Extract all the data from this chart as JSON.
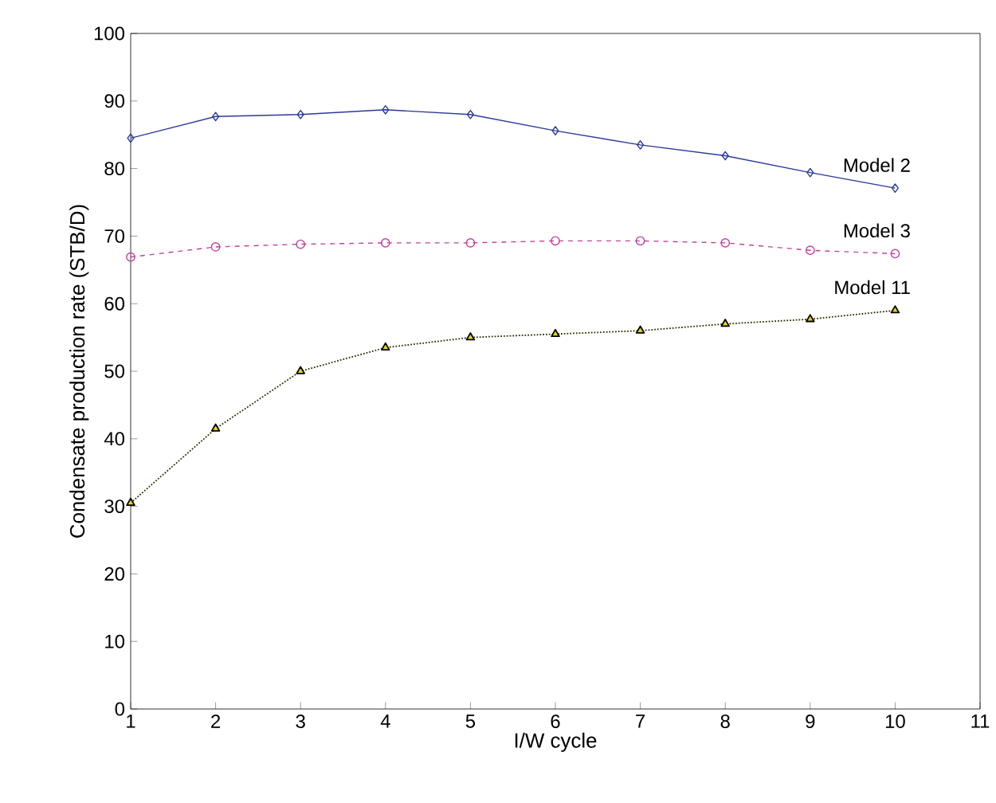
{
  "chart_data": {
    "type": "line",
    "xlabel": "I/W cycle",
    "ylabel": "Condensate production rate (STB/D)",
    "x": [
      1,
      2,
      3,
      4,
      5,
      6,
      7,
      8,
      9,
      10
    ],
    "series": [
      {
        "name": "Model 2",
        "color": "#2b3a9a",
        "marker": "diamond",
        "line_style": "solid",
        "values": [
          84.5,
          87.7,
          88,
          88.7,
          88,
          85.6,
          83.5,
          81.9,
          79.4,
          77.1
        ]
      },
      {
        "name": "Model 3",
        "color": "#c040a0",
        "marker": "circle",
        "line_style": "dashed",
        "values": [
          66.9,
          68.4,
          68.8,
          69,
          69,
          69.3,
          69.3,
          69,
          67.9,
          67.4
        ]
      },
      {
        "name": "Model 11",
        "color": "#e8d800",
        "marker": "triangle",
        "line_style": "dotted",
        "values": [
          30.5,
          41.5,
          50,
          53.5,
          55,
          55.5,
          56,
          57,
          57.7,
          59
        ]
      }
    ],
    "xlim": [
      1,
      11
    ],
    "xticks": [
      1,
      2,
      3,
      4,
      5,
      6,
      7,
      8,
      9,
      10,
      11
    ],
    "ylim": [
      0,
      100
    ],
    "yticks": [
      0,
      10,
      20,
      30,
      40,
      50,
      60,
      70,
      80,
      90,
      100
    ],
    "grid": false,
    "legend": false
  }
}
